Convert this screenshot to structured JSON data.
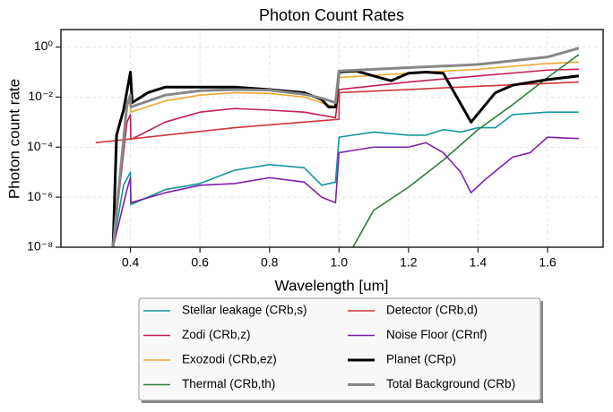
{
  "chart_data": {
    "type": "line",
    "title": "Photon Count Rates",
    "x_label": "Wavelength [um]",
    "y_label": "Photon count rate",
    "log_y": true,
    "grid": true,
    "legend_position": "below",
    "xlim": [
      0.2,
      1.76
    ],
    "xticks": [
      0.4,
      0.6,
      0.8,
      {
        "value": 1.0,
        "label": "1.0"
      },
      1.2,
      1.4,
      1.6
    ],
    "ylim": [
      1e-08,
      5
    ],
    "yticks": [
      {
        "value": 1e-08,
        "label": "10⁻⁸"
      },
      {
        "value": 1e-06,
        "label": "10⁻⁶"
      },
      {
        "value": 0.0001,
        "label": "10⁻⁴"
      },
      {
        "value": 0.01,
        "label": "10⁻²"
      },
      {
        "value": 1,
        "label": "10⁰"
      }
    ],
    "series": [
      {
        "name": "Stellar leakage (CRb,s)",
        "color": "#17969c",
        "width": 1.6,
        "x": [
          0.35,
          0.38,
          0.4,
          0.401,
          0.45,
          0.5,
          0.6,
          0.7,
          0.8,
          0.9,
          0.95,
          0.99,
          1.0,
          1.1,
          1.2,
          1.25,
          1.3,
          1.35,
          1.4,
          1.45,
          1.5,
          1.6,
          1.69
        ],
        "values": [
          1e-08,
          3e-06,
          1e-05,
          5e-07,
          1e-06,
          2e-06,
          3.5e-06,
          1.2e-05,
          2e-05,
          1.5e-05,
          3e-06,
          4e-06,
          0.00025,
          0.0004,
          0.0003,
          0.0003,
          0.0005,
          0.0004,
          0.0006,
          0.0006,
          0.002,
          0.0025,
          0.0025
        ]
      },
      {
        "name": "Zodi (CRb,z)",
        "color": "#c2204f",
        "width": 1.6,
        "x": [
          0.35,
          0.39,
          0.4,
          0.401,
          0.5,
          0.6,
          0.7,
          0.8,
          0.9,
          0.99,
          1.0,
          1.2,
          1.4,
          1.6,
          1.69
        ],
        "values": [
          1e-08,
          0.001,
          0.002,
          0.0002,
          0.001,
          0.0025,
          0.0035,
          0.003,
          0.0025,
          0.0015,
          0.02,
          0.04,
          0.07,
          0.12,
          0.13
        ]
      },
      {
        "name": "Exozodi (CRb,ez)",
        "color": "#f0a732",
        "width": 1.6,
        "x": [
          0.35,
          0.39,
          0.4,
          0.401,
          0.5,
          0.6,
          0.7,
          0.8,
          0.9,
          0.95,
          0.99,
          1.0,
          1.2,
          1.4,
          1.6,
          1.69
        ],
        "values": [
          1e-08,
          0.004,
          0.008,
          0.0025,
          0.007,
          0.012,
          0.015,
          0.014,
          0.01,
          0.006,
          0.004,
          0.06,
          0.09,
          0.13,
          0.22,
          0.25
        ]
      },
      {
        "name": "Thermal (CRb,th)",
        "color": "#2e7d3a",
        "width": 1.6,
        "x": [
          1.04,
          1.1,
          1.2,
          1.3,
          1.4,
          1.5,
          1.6,
          1.69
        ],
        "values": [
          1e-08,
          3e-07,
          2.5e-06,
          3e-05,
          0.0005,
          0.005,
          0.06,
          0.5
        ]
      },
      {
        "name": "Detector (CRb,d)",
        "color": "#d0363a",
        "width": 1.6,
        "x": [
          0.3,
          0.5,
          0.7,
          0.9,
          1.0,
          1.001,
          1.2,
          1.4,
          1.6,
          1.69
        ],
        "values": [
          0.00015,
          0.0003,
          0.0006,
          0.001,
          0.0013,
          0.015,
          0.02,
          0.027,
          0.035,
          0.04
        ]
      },
      {
        "name": "Noise Floor (CRnf)",
        "color": "#7b22a8",
        "width": 1.6,
        "x": [
          0.35,
          0.39,
          0.4,
          0.401,
          0.5,
          0.6,
          0.7,
          0.8,
          0.9,
          0.95,
          0.99,
          1.0,
          1.1,
          1.2,
          1.25,
          1.3,
          1.35,
          1.38,
          1.42,
          1.5,
          1.55,
          1.6,
          1.69
        ],
        "values": [
          1e-08,
          2e-06,
          6e-06,
          6e-07,
          1.5e-06,
          3e-06,
          3.5e-06,
          6e-06,
          4e-06,
          1e-06,
          6e-07,
          6e-05,
          0.0001,
          0.0001,
          0.00015,
          6e-05,
          1e-05,
          1.5e-06,
          5e-06,
          4e-05,
          6e-05,
          0.00025,
          0.00022
        ]
      },
      {
        "name": "Planet (CRp)",
        "color": "#000000",
        "width": 3,
        "x": [
          0.35,
          0.36,
          0.38,
          0.4,
          0.405,
          0.45,
          0.5,
          0.6,
          0.7,
          0.8,
          0.9,
          0.95,
          0.97,
          0.99,
          1.0,
          1.05,
          1.1,
          1.15,
          1.2,
          1.25,
          1.3,
          1.38,
          1.45,
          1.5,
          1.6,
          1.69
        ],
        "values": [
          1e-08,
          0.0003,
          0.003,
          0.1,
          0.006,
          0.015,
          0.025,
          0.025,
          0.025,
          0.02,
          0.015,
          0.008,
          0.004,
          0.004,
          0.1,
          0.11,
          0.07,
          0.045,
          0.09,
          0.1,
          0.09,
          0.001,
          0.015,
          0.03,
          0.05,
          0.07
        ]
      },
      {
        "name": "Total Background (CRb)",
        "color": "#878787",
        "width": 3,
        "x": [
          0.35,
          0.39,
          0.4,
          0.401,
          0.5,
          0.6,
          0.7,
          0.8,
          0.9,
          0.95,
          0.99,
          1.0,
          1.2,
          1.4,
          1.6,
          1.69
        ],
        "values": [
          1e-08,
          0.005,
          0.012,
          0.004,
          0.012,
          0.018,
          0.02,
          0.019,
          0.013,
          0.009,
          0.006,
          0.11,
          0.15,
          0.2,
          0.4,
          0.9
        ]
      }
    ]
  }
}
